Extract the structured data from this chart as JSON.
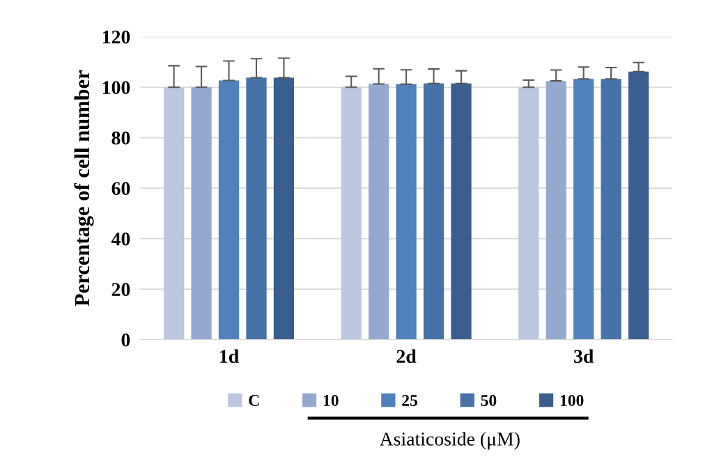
{
  "chart_data": {
    "type": "bar",
    "ylabel": "Percentage of cell number",
    "categories": [
      "1d",
      "2d",
      "3d"
    ],
    "series": [
      {
        "name": "C",
        "color": "#bcc8e0",
        "values": [
          100,
          100,
          100
        ],
        "errors": [
          8.5,
          4.3,
          2.8
        ]
      },
      {
        "name": "10",
        "color": "#95a9cf",
        "values": [
          100,
          101.3,
          102.5
        ],
        "errors": [
          8.2,
          6,
          4.3
        ]
      },
      {
        "name": "25",
        "color": "#4f81bd",
        "values": [
          102.7,
          101.2,
          103.3
        ],
        "errors": [
          7.7,
          5.7,
          4.7
        ]
      },
      {
        "name": "50",
        "color": "#4573a7",
        "values": [
          103.8,
          101.5,
          103.3
        ],
        "errors": [
          7.5,
          5.7,
          4.5
        ]
      },
      {
        "name": "100",
        "color": "#3a5f8f",
        "values": [
          103.8,
          101.5,
          106.2
        ],
        "errors": [
          7.7,
          5,
          3.6
        ]
      }
    ],
    "ylim": [
      0,
      120
    ],
    "yticks": [
      0,
      20,
      40,
      60,
      80,
      100,
      120
    ],
    "grid": "y",
    "legend": "bottom",
    "annotations": [
      "Asiaticoside (μM)"
    ]
  }
}
